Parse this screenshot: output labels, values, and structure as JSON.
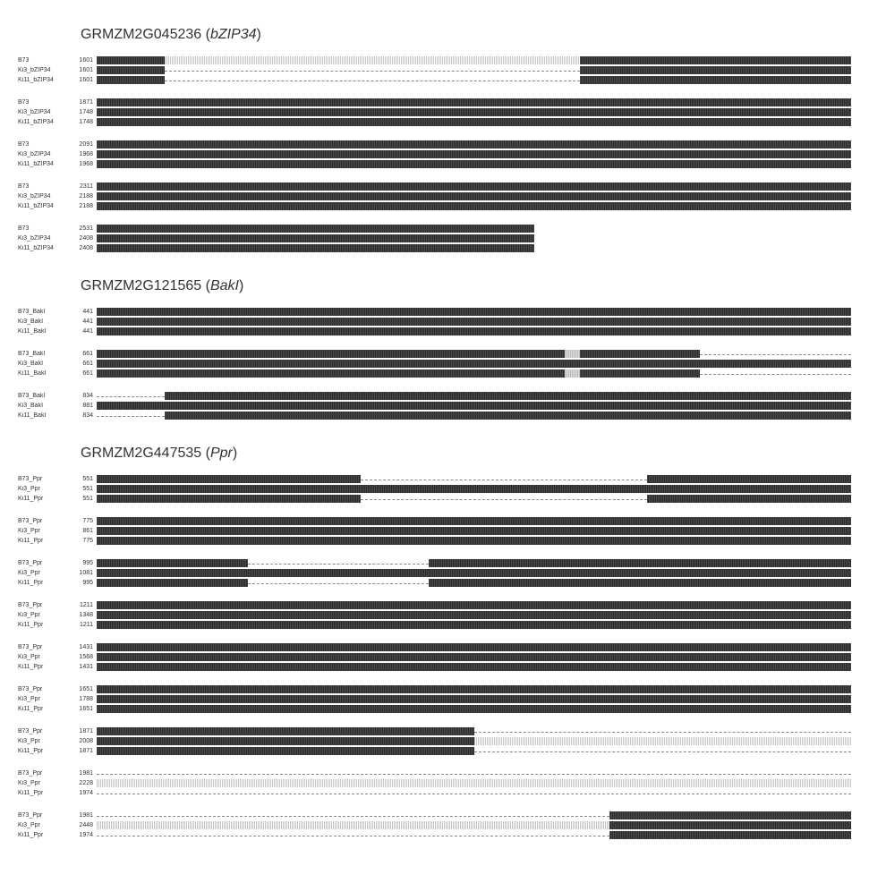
{
  "genes": [
    {
      "id": "GRMZM2G045236",
      "symbol": "bZIP34",
      "groups": [
        {
          "rows": [
            {
              "label": "B73",
              "pos": "1601",
              "segs": [
                [
                  "dark",
                  9
                ],
                [
                  "plain",
                  55
                ],
                [
                  "dark",
                  36
                ]
              ]
            },
            {
              "label": "Ki3_bZIP34",
              "pos": "1601",
              "segs": [
                [
                  "dark",
                  9
                ],
                [
                  "gap",
                  55
                ],
                [
                  "dark",
                  36
                ]
              ]
            },
            {
              "label": "Ki11_bZIP34",
              "pos": "1601",
              "segs": [
                [
                  "dark",
                  9
                ],
                [
                  "gap",
                  55
                ],
                [
                  "dark",
                  36
                ]
              ]
            }
          ]
        },
        {
          "rows": [
            {
              "label": "B73",
              "pos": "1871",
              "segs": [
                [
                  "dark",
                  100
                ]
              ]
            },
            {
              "label": "Ki3_bZIP34",
              "pos": "1748",
              "segs": [
                [
                  "dark",
                  100
                ]
              ]
            },
            {
              "label": "Ki11_bZIP34",
              "pos": "1748",
              "segs": [
                [
                  "dark",
                  100
                ]
              ]
            }
          ]
        },
        {
          "rows": [
            {
              "label": "B73",
              "pos": "2091",
              "segs": [
                [
                  "dark",
                  100
                ]
              ]
            },
            {
              "label": "Ki3_bZIP34",
              "pos": "1968",
              "segs": [
                [
                  "dark",
                  100
                ]
              ]
            },
            {
              "label": "Ki11_bZIP34",
              "pos": "1968",
              "segs": [
                [
                  "dark",
                  100
                ]
              ]
            }
          ]
        },
        {
          "rows": [
            {
              "label": "B73",
              "pos": "2311",
              "segs": [
                [
                  "dark",
                  100
                ]
              ]
            },
            {
              "label": "Ki3_bZIP34",
              "pos": "2188",
              "segs": [
                [
                  "dark",
                  100
                ]
              ]
            },
            {
              "label": "Ki11_bZIP34",
              "pos": "2188",
              "segs": [
                [
                  "dark",
                  100
                ]
              ]
            }
          ]
        },
        {
          "rows": [
            {
              "label": "B73",
              "pos": "2531",
              "segs": [
                [
                  "dark",
                  58
                ]
              ]
            },
            {
              "label": "Ki3_bZIP34",
              "pos": "2408",
              "segs": [
                [
                  "dark",
                  58
                ]
              ]
            },
            {
              "label": "Ki11_bZIP34",
              "pos": "2408",
              "segs": [
                [
                  "dark",
                  58
                ]
              ]
            }
          ]
        }
      ]
    },
    {
      "id": "GRMZM2G121565",
      "symbol": "BakI",
      "groups": [
        {
          "rows": [
            {
              "label": "B73_BakI",
              "pos": "441",
              "segs": [
                [
                  "dark",
                  100
                ]
              ]
            },
            {
              "label": "Ki3_BakI",
              "pos": "441",
              "segs": [
                [
                  "dark",
                  100
                ]
              ]
            },
            {
              "label": "Ki11_BakI",
              "pos": "441",
              "segs": [
                [
                  "dark",
                  100
                ]
              ]
            }
          ]
        },
        {
          "rows": [
            {
              "label": "B73_BakI",
              "pos": "661",
              "segs": [
                [
                  "dark",
                  62
                ],
                [
                  "lightbox",
                  2
                ],
                [
                  "dark",
                  16
                ],
                [
                  "gap",
                  20
                ]
              ]
            },
            {
              "label": "Ki3_BakI",
              "pos": "661",
              "segs": [
                [
                  "dark",
                  100
                ]
              ]
            },
            {
              "label": "Ki11_BakI",
              "pos": "661",
              "segs": [
                [
                  "dark",
                  62
                ],
                [
                  "lightbox",
                  2
                ],
                [
                  "dark",
                  16
                ],
                [
                  "gap",
                  20
                ]
              ]
            }
          ]
        },
        {
          "rows": [
            {
              "label": "B73_BakI",
              "pos": "834",
              "segs": [
                [
                  "gap",
                  9
                ],
                [
                  "dark",
                  91
                ]
              ]
            },
            {
              "label": "Ki3_BakI",
              "pos": "881",
              "segs": [
                [
                  "dark",
                  100
                ]
              ]
            },
            {
              "label": "Ki11_BakI",
              "pos": "834",
              "segs": [
                [
                  "gap",
                  9
                ],
                [
                  "dark",
                  91
                ]
              ]
            }
          ]
        }
      ]
    },
    {
      "id": "GRMZM2G447535",
      "symbol": "Ppr",
      "groups": [
        {
          "rows": [
            {
              "label": "B73_Ppr",
              "pos": "551",
              "segs": [
                [
                  "dark",
                  35
                ],
                [
                  "gap",
                  38
                ],
                [
                  "dark",
                  27
                ]
              ]
            },
            {
              "label": "Ki3_Ppr",
              "pos": "551",
              "segs": [
                [
                  "dark",
                  100
                ]
              ]
            },
            {
              "label": "Ki11_Ppr",
              "pos": "551",
              "segs": [
                [
                  "dark",
                  35
                ],
                [
                  "gap",
                  38
                ],
                [
                  "dark",
                  27
                ]
              ]
            }
          ]
        },
        {
          "rows": [
            {
              "label": "B73_Ppr",
              "pos": "775",
              "segs": [
                [
                  "dark",
                  100
                ]
              ]
            },
            {
              "label": "Ki3_Ppr",
              "pos": "861",
              "segs": [
                [
                  "dark",
                  100
                ]
              ]
            },
            {
              "label": "Ki11_Ppr",
              "pos": "775",
              "segs": [
                [
                  "dark",
                  100
                ]
              ]
            }
          ]
        },
        {
          "rows": [
            {
              "label": "B73_Ppr",
              "pos": "995",
              "segs": [
                [
                  "dark",
                  20
                ],
                [
                  "gap",
                  24
                ],
                [
                  "dark",
                  56
                ]
              ]
            },
            {
              "label": "Ki3_Ppr",
              "pos": "1081",
              "segs": [
                [
                  "dark",
                  100
                ]
              ]
            },
            {
              "label": "Ki11_Ppr",
              "pos": "995",
              "segs": [
                [
                  "dark",
                  20
                ],
                [
                  "gap",
                  24
                ],
                [
                  "dark",
                  56
                ]
              ]
            }
          ]
        },
        {
          "rows": [
            {
              "label": "B73_Ppr",
              "pos": "1211",
              "segs": [
                [
                  "dark",
                  100
                ]
              ]
            },
            {
              "label": "Ki3_Ppr",
              "pos": "1348",
              "segs": [
                [
                  "dark",
                  100
                ]
              ]
            },
            {
              "label": "Ki11_Ppr",
              "pos": "1211",
              "segs": [
                [
                  "dark",
                  100
                ]
              ]
            }
          ]
        },
        {
          "rows": [
            {
              "label": "B73_Ppr",
              "pos": "1431",
              "segs": [
                [
                  "dark",
                  100
                ]
              ]
            },
            {
              "label": "Ki3_Ppr",
              "pos": "1568",
              "segs": [
                [
                  "dark",
                  100
                ]
              ]
            },
            {
              "label": "Ki11_Ppr",
              "pos": "1431",
              "segs": [
                [
                  "dark",
                  100
                ]
              ]
            }
          ]
        },
        {
          "rows": [
            {
              "label": "B73_Ppr",
              "pos": "1651",
              "segs": [
                [
                  "dark",
                  100
                ]
              ]
            },
            {
              "label": "Ki3_Ppr",
              "pos": "1788",
              "segs": [
                [
                  "dark",
                  100
                ]
              ]
            },
            {
              "label": "Ki11_Ppr",
              "pos": "1651",
              "segs": [
                [
                  "dark",
                  100
                ]
              ]
            }
          ]
        },
        {
          "rows": [
            {
              "label": "B73_Ppr",
              "pos": "1871",
              "segs": [
                [
                  "dark",
                  50
                ],
                [
                  "gap",
                  50
                ]
              ]
            },
            {
              "label": "Ki3_Ppr",
              "pos": "2008",
              "segs": [
                [
                  "dark",
                  50
                ],
                [
                  "plain",
                  50
                ]
              ]
            },
            {
              "label": "Ki11_Ppr",
              "pos": "1871",
              "segs": [
                [
                  "dark",
                  50
                ],
                [
                  "gap",
                  50
                ]
              ]
            }
          ]
        },
        {
          "rows": [
            {
              "label": "B73_Ppr",
              "pos": "1981",
              "segs": [
                [
                  "gap",
                  100
                ]
              ]
            },
            {
              "label": "Ki3_Ppr",
              "pos": "2228",
              "segs": [
                [
                  "plain",
                  100
                ]
              ]
            },
            {
              "label": "Ki11_Ppr",
              "pos": "1974",
              "segs": [
                [
                  "gap",
                  100
                ]
              ]
            }
          ]
        },
        {
          "rows": [
            {
              "label": "B73_Ppr",
              "pos": "1981",
              "segs": [
                [
                  "gap",
                  68
                ],
                [
                  "dark",
                  32
                ]
              ]
            },
            {
              "label": "Ki3_Ppr",
              "pos": "2448",
              "segs": [
                [
                  "plain",
                  68
                ],
                [
                  "dark",
                  32
                ]
              ]
            },
            {
              "label": "Ki11_Ppr",
              "pos": "1974",
              "segs": [
                [
                  "gap",
                  68
                ],
                [
                  "dark",
                  32
                ]
              ]
            }
          ]
        }
      ]
    }
  ]
}
